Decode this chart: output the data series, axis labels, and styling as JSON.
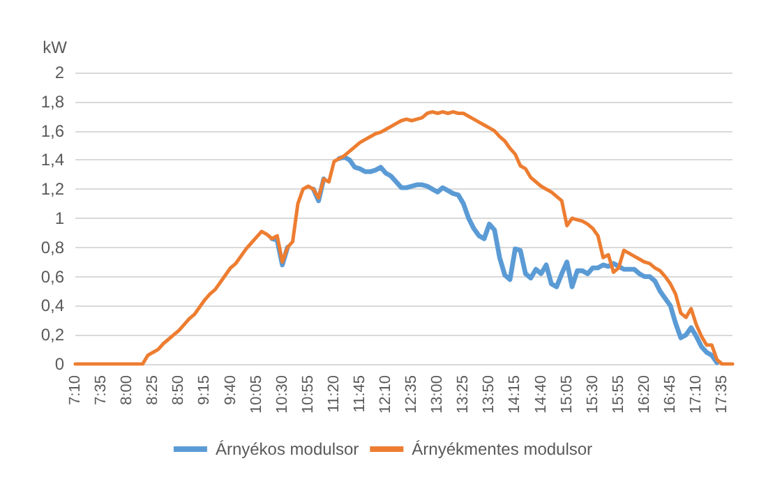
{
  "chart_data": {
    "type": "line",
    "ylabel": "kW",
    "categories": [
      "7:10",
      null,
      null,
      null,
      null,
      "7:35",
      null,
      null,
      null,
      null,
      "8:00",
      null,
      null,
      null,
      null,
      "8:25",
      null,
      null,
      null,
      null,
      "8:50",
      null,
      null,
      null,
      null,
      "9:15",
      null,
      null,
      null,
      null,
      "9:40",
      null,
      null,
      null,
      null,
      "10:05",
      null,
      null,
      null,
      null,
      "10:30",
      null,
      null,
      null,
      null,
      "10:55",
      null,
      null,
      null,
      null,
      "11:20",
      null,
      null,
      null,
      null,
      "11:45",
      null,
      null,
      null,
      null,
      "12:10",
      null,
      null,
      null,
      null,
      "12:35",
      null,
      null,
      null,
      null,
      "13:00",
      null,
      null,
      null,
      null,
      "13:25",
      null,
      null,
      null,
      null,
      "13:50",
      null,
      null,
      null,
      null,
      "14:15",
      null,
      null,
      null,
      null,
      "14:40",
      null,
      null,
      null,
      null,
      "15:05",
      null,
      null,
      null,
      null,
      "15:30",
      null,
      null,
      null,
      null,
      "15:55",
      null,
      null,
      null,
      null,
      "16:20",
      null,
      null,
      null,
      null,
      "16:45",
      null,
      null,
      null,
      null,
      "17:10",
      null,
      null,
      null,
      null,
      "17:35",
      null,
      null
    ],
    "series": [
      {
        "name": "Árnyékos modulsor",
        "color": "#5b9bd5",
        "values": [
          null,
          null,
          null,
          null,
          null,
          null,
          null,
          null,
          null,
          null,
          null,
          null,
          null,
          null,
          null,
          null,
          null,
          null,
          null,
          null,
          null,
          null,
          null,
          null,
          null,
          null,
          null,
          null,
          null,
          null,
          null,
          null,
          null,
          null,
          null,
          null,
          null,
          null,
          0.86,
          0.85,
          0.68,
          0.8,
          null,
          null,
          null,
          null,
          1.2,
          1.12,
          1.27,
          null,
          null,
          1.41,
          1.42,
          1.4,
          1.35,
          1.34,
          1.32,
          1.32,
          1.33,
          1.35,
          1.31,
          1.29,
          1.25,
          1.21,
          1.21,
          1.22,
          1.23,
          1.23,
          1.22,
          1.2,
          1.18,
          1.21,
          1.19,
          1.17,
          1.16,
          1.1,
          1.0,
          0.93,
          0.88,
          0.86,
          0.96,
          0.92,
          0.73,
          0.61,
          0.58,
          0.79,
          0.78,
          0.62,
          0.59,
          0.65,
          0.62,
          0.68,
          0.55,
          0.53,
          0.62,
          0.7,
          0.53,
          0.64,
          0.64,
          0.62,
          0.66,
          0.66,
          0.68,
          0.67,
          0.69,
          0.67,
          0.65,
          0.65,
          0.65,
          0.62,
          0.6,
          0.6,
          0.57,
          0.5,
          0.45,
          0.4,
          0.28,
          0.18,
          0.2,
          0.25,
          0.19,
          0.12,
          0.08,
          0.06,
          0.01,
          null,
          null,
          null
        ]
      },
      {
        "name": "Árnyékmentes modulsor",
        "color": "#ed7d31",
        "values": [
          0,
          0,
          0,
          0,
          0,
          0,
          0,
          0,
          0,
          0,
          0,
          0,
          0,
          0,
          0.06,
          0.08,
          0.1,
          0.14,
          0.17,
          0.2,
          0.23,
          0.27,
          0.31,
          0.34,
          0.39,
          0.44,
          0.48,
          0.51,
          0.56,
          0.61,
          0.66,
          0.69,
          0.74,
          0.79,
          0.83,
          0.87,
          0.91,
          0.89,
          0.86,
          0.88,
          0.7,
          0.8,
          0.84,
          1.1,
          1.2,
          1.22,
          1.2,
          1.14,
          1.27,
          1.25,
          1.39,
          1.41,
          1.43,
          1.46,
          1.49,
          1.52,
          1.54,
          1.56,
          1.58,
          1.59,
          1.61,
          1.63,
          1.65,
          1.67,
          1.68,
          1.67,
          1.68,
          1.69,
          1.72,
          1.73,
          1.72,
          1.73,
          1.72,
          1.73,
          1.72,
          1.72,
          1.7,
          1.68,
          1.66,
          1.64,
          1.62,
          1.6,
          1.56,
          1.53,
          1.48,
          1.44,
          1.36,
          1.34,
          1.28,
          1.25,
          1.22,
          1.2,
          1.18,
          1.15,
          1.12,
          0.95,
          1.0,
          0.99,
          0.98,
          0.96,
          0.93,
          0.88,
          0.73,
          0.75,
          0.63,
          0.66,
          0.78,
          0.76,
          0.74,
          0.72,
          0.7,
          0.69,
          0.66,
          0.64,
          0.6,
          0.55,
          0.48,
          0.35,
          0.32,
          0.38,
          0.27,
          0.19,
          0.13,
          0.13,
          0.03,
          0,
          0,
          0
        ]
      }
    ],
    "ylim": [
      0,
      2
    ],
    "yticks": [
      0,
      {
        "value": 0.2,
        "label": "0,2"
      },
      {
        "value": 0.4,
        "label": "0,4"
      },
      {
        "value": 0.6,
        "label": "0,6"
      },
      {
        "value": 0.8,
        "label": "0,8"
      },
      1,
      {
        "value": 1.2,
        "label": "1,2"
      },
      {
        "value": 1.4,
        "label": "1,4"
      },
      {
        "value": 1.6,
        "label": "1,6"
      },
      {
        "value": 1.8,
        "label": "1,8"
      },
      2
    ],
    "grid": "y",
    "legend": "bottom",
    "marker": "none",
    "line_style": "solid"
  }
}
